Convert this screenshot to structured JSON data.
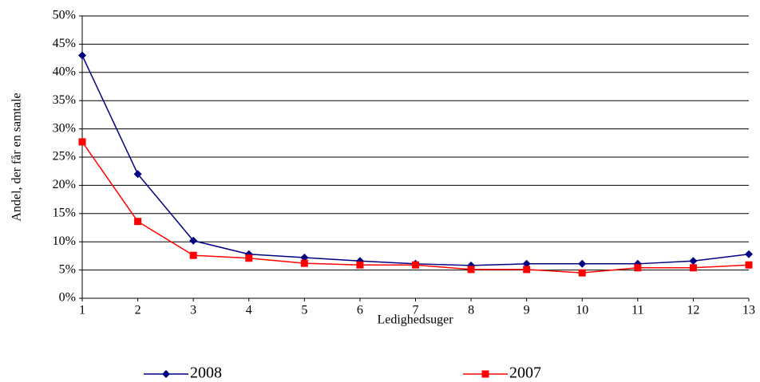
{
  "chart_data": {
    "type": "line",
    "y_label": "Andel, der får en samtale",
    "x_label": "Ledighedsuger",
    "x": [
      1,
      2,
      3,
      4,
      5,
      6,
      7,
      8,
      9,
      10,
      11,
      12,
      13
    ],
    "series": [
      {
        "name": "2008",
        "color": "#000080",
        "marker": "diamond",
        "values": [
          43,
          22,
          10.2,
          7.8,
          7.2,
          6.6,
          6.1,
          5.8,
          6.1,
          6.1,
          6.1,
          6.6,
          7.8
        ]
      },
      {
        "name": "2007",
        "color": "#ff0000",
        "marker": "square",
        "values": [
          27.7,
          13.6,
          7.6,
          7.1,
          6.2,
          5.9,
          5.9,
          5.1,
          5.1,
          4.5,
          5.4,
          5.4,
          5.9
        ]
      }
    ],
    "xlim": [
      1,
      13
    ],
    "xticks": [
      1,
      2,
      3,
      4,
      5,
      6,
      7,
      8,
      9,
      10,
      11,
      12,
      13
    ],
    "ylim": [
      0,
      50
    ],
    "yticks": [
      {
        "value": 0,
        "label": "0%"
      },
      {
        "value": 5,
        "label": "5%"
      },
      {
        "value": 10,
        "label": "10%"
      },
      {
        "value": 15,
        "label": "15%"
      },
      {
        "value": 20,
        "label": "20%"
      },
      {
        "value": 25,
        "label": "25%"
      },
      {
        "value": 30,
        "label": "30%"
      },
      {
        "value": 35,
        "label": "35%"
      },
      {
        "value": 40,
        "label": "40%"
      },
      {
        "value": 45,
        "label": "45%"
      },
      {
        "value": 50,
        "label": "50%"
      }
    ],
    "grid": true,
    "legend": "bottom"
  }
}
